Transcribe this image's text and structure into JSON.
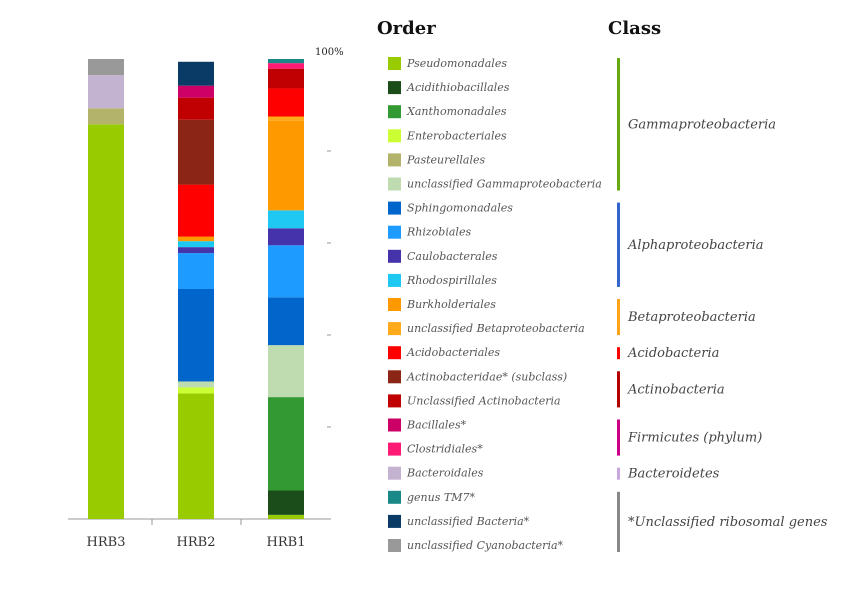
{
  "chart_data": {
    "type": "bar",
    "stacked": true,
    "orientation": "vertical",
    "categories": [
      "HRB3",
      "HRB2",
      "HRB1"
    ],
    "y_top_label": "100%",
    "ylim": [
      0,
      100
    ],
    "grid": false,
    "legend_placement": "right",
    "order_heading": "Order",
    "class_heading": "Class",
    "series": [
      {
        "name": "Pseudomonadales",
        "color": "#99cc00",
        "values": [
          85.8,
          27.3,
          0.9
        ]
      },
      {
        "name": "Acidithiobacillales",
        "color": "#1a4d1a",
        "values": [
          0,
          0,
          5.3
        ]
      },
      {
        "name": "Xanthomonadales",
        "color": "#339933",
        "values": [
          0,
          0,
          20.3
        ]
      },
      {
        "name": "Enterobacteriales",
        "color": "#ccff33",
        "values": [
          0,
          1.3,
          0
        ]
      },
      {
        "name": "Pasteurellales",
        "color": "#b3b36b",
        "values": [
          3.5,
          0,
          0
        ]
      },
      {
        "name": "unclassified Gammaproteobacteria",
        "color": "#bfdcb0",
        "values": [
          0,
          1.3,
          11.3
        ]
      },
      {
        "name": "Sphingomonadales",
        "color": "#0066cc",
        "values": [
          0,
          20.1,
          10.4
        ]
      },
      {
        "name": "Rhizobiales",
        "color": "#1e9bff",
        "values": [
          0,
          7.8,
          11.3
        ]
      },
      {
        "name": "Caulobacterales",
        "color": "#4433aa",
        "values": [
          0,
          1.3,
          3.7
        ]
      },
      {
        "name": "Rhodospirillales",
        "color": "#1ec8f0",
        "values": [
          0,
          1.3,
          3.9
        ]
      },
      {
        "name": "Burkholderiales",
        "color": "#ff9900",
        "values": [
          0,
          1.0,
          19.5
        ]
      },
      {
        "name": "unclassified Betaproteobacteria",
        "color": "#ffaa1a",
        "values": [
          0,
          0,
          0.9
        ]
      },
      {
        "name": "Acidobacteriales",
        "color": "#ff0000",
        "values": [
          0,
          11.3,
          6.1
        ]
      },
      {
        "name": "Actinobacteridae* (subclass)",
        "color": "#8b2515",
        "values": [
          0,
          14.1,
          0
        ]
      },
      {
        "name": "Unclassified Actinobacteria",
        "color": "#c00000",
        "values": [
          0,
          4.8,
          4.3
        ]
      },
      {
        "name": "Bacillales*",
        "color": "#cc0066",
        "values": [
          0,
          2.6,
          0
        ]
      },
      {
        "name": "Clostridiales*",
        "color": "#ff1a75",
        "values": [
          0,
          0,
          1.2
        ]
      },
      {
        "name": "Bacteroidales",
        "color": "#c3b3d0",
        "values": [
          7.2,
          0,
          0
        ]
      },
      {
        "name": "genus TM7*",
        "color": "#1a8888",
        "values": [
          0,
          0,
          0.9
        ]
      },
      {
        "name": "unclassified Bacteria*",
        "color": "#0a3a66",
        "values": [
          0,
          5.2,
          0
        ]
      },
      {
        "name": "unclassified Cyanobacteria*",
        "color": "#999999",
        "values": [
          3.5,
          0,
          0
        ]
      }
    ],
    "classes": [
      {
        "name": "Gammaproteobacteria",
        "color": "#66aa11",
        "from": 0,
        "to": 5
      },
      {
        "name": "Alphaproteobacteria",
        "color": "#3366cc",
        "from": 6,
        "to": 9
      },
      {
        "name": "Betaproteobacteria",
        "color": "#ffa31a",
        "from": 10,
        "to": 11
      },
      {
        "name": "Acidobacteria",
        "color": "#ff0000",
        "from": 12,
        "to": 12
      },
      {
        "name": "Actinobacteria",
        "color": "#b30000",
        "from": 13,
        "to": 14
      },
      {
        "name": "Firmicutes (phylum)",
        "color": "#cc0088",
        "from": 15,
        "to": 16
      },
      {
        "name": "Bacteroidetes",
        "color": "#c9a6e0",
        "from": 17,
        "to": 17
      },
      {
        "name": "*Unclassified ribosomal genes",
        "color": "#888888",
        "from": 18,
        "to": 20
      }
    ]
  }
}
